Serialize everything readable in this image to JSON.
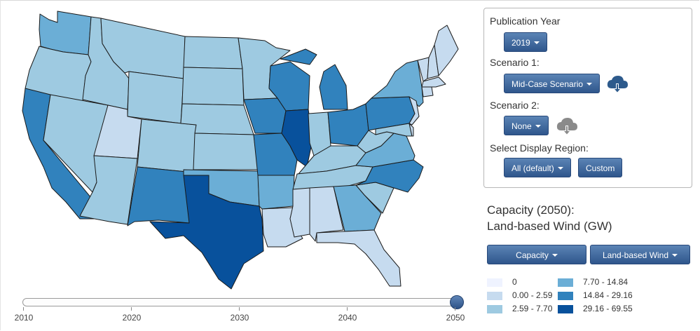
{
  "map": {
    "states": [
      {
        "id": "WA",
        "bin": 3
      },
      {
        "id": "OR",
        "bin": 2
      },
      {
        "id": "CA",
        "bin": 4
      },
      {
        "id": "NV",
        "bin": 2
      },
      {
        "id": "ID",
        "bin": 2
      },
      {
        "id": "MT",
        "bin": 2
      },
      {
        "id": "WY",
        "bin": 2
      },
      {
        "id": "UT",
        "bin": 1
      },
      {
        "id": "AZ",
        "bin": 2
      },
      {
        "id": "CO",
        "bin": 2
      },
      {
        "id": "NM",
        "bin": 4
      },
      {
        "id": "ND",
        "bin": 2
      },
      {
        "id": "SD",
        "bin": 2
      },
      {
        "id": "NE",
        "bin": 2
      },
      {
        "id": "KS",
        "bin": 2
      },
      {
        "id": "OK",
        "bin": 3
      },
      {
        "id": "TX",
        "bin": 5
      },
      {
        "id": "MN",
        "bin": 2
      },
      {
        "id": "IA",
        "bin": 4
      },
      {
        "id": "MO",
        "bin": 4
      },
      {
        "id": "AR",
        "bin": 3
      },
      {
        "id": "LA",
        "bin": 1
      },
      {
        "id": "WI",
        "bin": 4
      },
      {
        "id": "IL",
        "bin": 5
      },
      {
        "id": "MI",
        "bin": 4
      },
      {
        "id": "IN",
        "bin": 2
      },
      {
        "id": "OH",
        "bin": 4
      },
      {
        "id": "KY",
        "bin": 2
      },
      {
        "id": "TN",
        "bin": 2
      },
      {
        "id": "MS",
        "bin": 1
      },
      {
        "id": "AL",
        "bin": 1
      },
      {
        "id": "GA",
        "bin": 3
      },
      {
        "id": "FL",
        "bin": 1
      },
      {
        "id": "SC",
        "bin": 2
      },
      {
        "id": "NC",
        "bin": 4
      },
      {
        "id": "VA",
        "bin": 3
      },
      {
        "id": "WV",
        "bin": 2
      },
      {
        "id": "PA",
        "bin": 4
      },
      {
        "id": "NY",
        "bin": 3
      },
      {
        "id": "VT",
        "bin": 1
      },
      {
        "id": "NH",
        "bin": 1
      },
      {
        "id": "ME",
        "bin": 1
      },
      {
        "id": "MA",
        "bin": 1
      },
      {
        "id": "CT",
        "bin": 1
      },
      {
        "id": "NJ",
        "bin": 1
      },
      {
        "id": "MD",
        "bin": 2
      },
      {
        "id": "DE",
        "bin": 1
      }
    ]
  },
  "timeline": {
    "ticks": [
      "2010",
      "2020",
      "2030",
      "2040",
      "2050"
    ],
    "min": 2010,
    "max": 2050,
    "value": 2050
  },
  "controls": {
    "publication_year": {
      "label": "Publication Year",
      "value": "2019"
    },
    "scenario1": {
      "label": "Scenario 1:",
      "value": "Mid-Case Scenario"
    },
    "scenario2": {
      "label": "Scenario 2:",
      "value": "None"
    },
    "region": {
      "label": "Select Display Region:",
      "value": "All (default)",
      "custom": "Custom"
    }
  },
  "title": {
    "line1": "Capacity (2050):",
    "line2": "Land-based Wind (GW)"
  },
  "selectors": {
    "metric": "Capacity",
    "technology": "Land-based Wind"
  },
  "legend": [
    {
      "label": "0",
      "color": "#eff3ff"
    },
    {
      "label": "0.00 - 2.59",
      "color": "#c6dbef"
    },
    {
      "label": "2.59 - 7.70",
      "color": "#9ecae1"
    },
    {
      "label": "7.70 - 14.84",
      "color": "#6baed6"
    },
    {
      "label": "14.84 - 29.16",
      "color": "#3182bd"
    },
    {
      "label": "29.16 - 69.55",
      "color": "#08519c"
    }
  ],
  "colors": {
    "accent": "#2f568c",
    "icon": "#2d5a8c",
    "icon_disabled": "#8a8a8a"
  },
  "icons": {
    "download_active": "cloud-download-icon",
    "download_disabled": "cloud-download-icon"
  }
}
